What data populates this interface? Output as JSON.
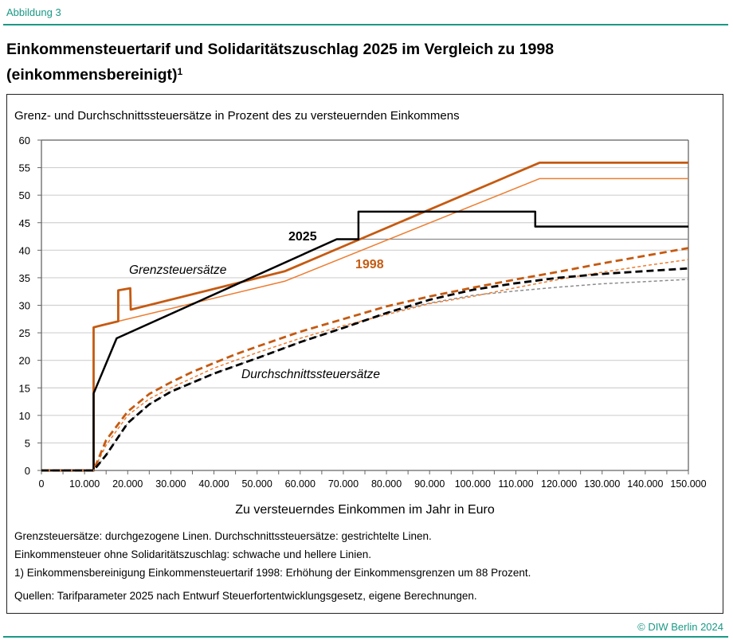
{
  "header": {
    "figure_label": "Abbildung 3",
    "title_line1": "Einkommensteuertarif und Solidaritätszuschlag 2025 im Vergleich zu 1998",
    "title_line2": "(einkommensbereinigt)",
    "title_footnote": "1"
  },
  "chart_data": {
    "type": "line",
    "title": "Grenz- und Durchschnittssteuersätze in Prozent des zu versteuernden Einkommens",
    "xlabel": "Zu versteuerndes Einkommen im Jahr in Euro",
    "ylabel": "",
    "xlim": [
      0,
      150000
    ],
    "ylim": [
      0,
      60
    ],
    "grid": true,
    "x_ticks": [
      0,
      10000,
      20000,
      30000,
      40000,
      50000,
      60000,
      70000,
      80000,
      90000,
      100000,
      110000,
      120000,
      130000,
      140000,
      150000
    ],
    "x_tick_labels": [
      "0",
      "10.000",
      "20.000",
      "30.000",
      "40.000",
      "50.000",
      "60.000",
      "70.000",
      "80.000",
      "90.000",
      "100.000",
      "110.000",
      "120.000",
      "130.000",
      "140.000",
      "150.000"
    ],
    "y_ticks": [
      0,
      5,
      10,
      15,
      20,
      25,
      30,
      35,
      40,
      45,
      50,
      55,
      60
    ],
    "y_tick_labels": [
      "0",
      "5",
      "10",
      "15",
      "20",
      "25",
      "30",
      "35",
      "40",
      "45",
      "50",
      "55",
      "60"
    ],
    "annotations": {
      "year_2025": "2025",
      "year_1998": "1998",
      "marginal": "Grenzsteuersätze",
      "average": "Durchschnittssteuersätze"
    },
    "colors": {
      "y2025": "#000000",
      "y2025_light": "#8c8c8c",
      "y1998": "#c55a11",
      "y1998_light": "#ed7d31",
      "grid": "#d0d0d0"
    },
    "series": [
      {
        "key": "marg2025_light",
        "color": "#8c8c8c",
        "width": 1.3,
        "dash": "",
        "points": [
          [
            0,
            0
          ],
          [
            12096,
            0
          ],
          [
            12096,
            14
          ],
          [
            17443,
            24
          ],
          [
            68480,
            42
          ],
          [
            150000,
            42
          ]
        ]
      },
      {
        "key": "marg1998_light",
        "color": "#ed7d31",
        "width": 1.5,
        "dash": "",
        "points": [
          [
            0,
            0
          ],
          [
            12100,
            0
          ],
          [
            12100,
            25.9
          ],
          [
            17800,
            27.1
          ],
          [
            56500,
            34.4
          ],
          [
            115500,
            53
          ],
          [
            150000,
            53
          ]
        ]
      },
      {
        "key": "marg1998",
        "color": "#c55a11",
        "width": 2.8,
        "dash": "",
        "points": [
          [
            0,
            0
          ],
          [
            12100,
            0
          ],
          [
            12100,
            26
          ],
          [
            17800,
            27.1
          ],
          [
            17800,
            32.7
          ],
          [
            20600,
            33.1
          ],
          [
            20700,
            29.2
          ],
          [
            56500,
            36.2
          ],
          [
            115500,
            55.9
          ],
          [
            150000,
            55.9
          ]
        ]
      },
      {
        "key": "marg2025",
        "color": "#000000",
        "width": 2.5,
        "dash": "",
        "points": [
          [
            0,
            0
          ],
          [
            12096,
            0
          ],
          [
            12096,
            14
          ],
          [
            17443,
            24
          ],
          [
            68480,
            42
          ],
          [
            73500,
            42
          ],
          [
            73500,
            47
          ],
          [
            114500,
            47
          ],
          [
            114500,
            44.3
          ],
          [
            150000,
            44.3
          ]
        ]
      },
      {
        "key": "avg2025_light",
        "color": "#8c8c8c",
        "width": 1.5,
        "dash": "4,3",
        "points": [
          [
            0,
            0
          ],
          [
            12096,
            0
          ],
          [
            15000,
            2.8
          ],
          [
            20000,
            8.6
          ],
          [
            25000,
            12.0
          ],
          [
            30000,
            14.3
          ],
          [
            40000,
            17.6
          ],
          [
            50000,
            20.4
          ],
          [
            60000,
            23.3
          ],
          [
            70000,
            25.9
          ],
          [
            80000,
            28.6
          ],
          [
            90000,
            30.4
          ],
          [
            100000,
            31.8
          ],
          [
            110000,
            32.6
          ],
          [
            120000,
            33.3
          ],
          [
            130000,
            33.9
          ],
          [
            140000,
            34.3
          ],
          [
            150000,
            34.7
          ]
        ]
      },
      {
        "key": "avg1998_light",
        "color": "#ed7d31",
        "width": 1.5,
        "dash": "4,3",
        "points": [
          [
            0,
            0
          ],
          [
            12100,
            0
          ],
          [
            15000,
            4.6
          ],
          [
            20000,
            10.0
          ],
          [
            25000,
            13.0
          ],
          [
            30000,
            15.0
          ],
          [
            40000,
            18.6
          ],
          [
            50000,
            21.4
          ],
          [
            60000,
            24.0
          ],
          [
            70000,
            26.3
          ],
          [
            80000,
            28.3
          ],
          [
            90000,
            30.3
          ],
          [
            100000,
            31.6
          ],
          [
            110000,
            33.2
          ],
          [
            120000,
            34.7
          ],
          [
            130000,
            36.0
          ],
          [
            140000,
            37.2
          ],
          [
            150000,
            38.3
          ]
        ]
      },
      {
        "key": "avg1998",
        "color": "#c55a11",
        "width": 2.8,
        "dash": "9,5",
        "points": [
          [
            0,
            0
          ],
          [
            12100,
            0
          ],
          [
            15000,
            5.5
          ],
          [
            20000,
            10.7
          ],
          [
            25000,
            13.9
          ],
          [
            30000,
            16.0
          ],
          [
            35000,
            17.9
          ],
          [
            40000,
            19.5
          ],
          [
            45000,
            21.1
          ],
          [
            50000,
            22.5
          ],
          [
            60000,
            25.2
          ],
          [
            70000,
            27.5
          ],
          [
            80000,
            29.8
          ],
          [
            90000,
            31.6
          ],
          [
            100000,
            33.2
          ],
          [
            110000,
            34.7
          ],
          [
            120000,
            36.1
          ],
          [
            130000,
            37.6
          ],
          [
            140000,
            39.0
          ],
          [
            150000,
            40.4
          ]
        ]
      },
      {
        "key": "avg2025",
        "color": "#000000",
        "width": 2.8,
        "dash": "9,5",
        "points": [
          [
            0,
            0
          ],
          [
            12096,
            0
          ],
          [
            15000,
            2.8
          ],
          [
            20000,
            8.6
          ],
          [
            25000,
            12.0
          ],
          [
            30000,
            14.3
          ],
          [
            40000,
            17.6
          ],
          [
            50000,
            20.4
          ],
          [
            60000,
            23.3
          ],
          [
            70000,
            25.9
          ],
          [
            80000,
            28.6
          ],
          [
            90000,
            31.0
          ],
          [
            100000,
            32.8
          ],
          [
            110000,
            34.0
          ],
          [
            120000,
            35.0
          ],
          [
            130000,
            35.7
          ],
          [
            140000,
            36.2
          ],
          [
            150000,
            36.7
          ]
        ]
      }
    ]
  },
  "notes": {
    "line1": "Grenzsteuersätze: durchgezogene Linen. Durchschnittssteuersätze: gestrichtelte Linen.",
    "line2": "Einkommensteuer ohne Solidaritätszuschlag: schwache und hellere Linien.",
    "line3": "1) Einkommensbereinigung Einkommensteuertarif 1998: Erhöhung der Einkommensgrenzen um 88 Prozent.",
    "sources": "Quellen: Tarifparameter 2025 nach Entwurf Steuerfortentwicklungsgesetz, eigene Berechnungen."
  },
  "footer": {
    "copyright": "© DIW Berlin 2024"
  }
}
